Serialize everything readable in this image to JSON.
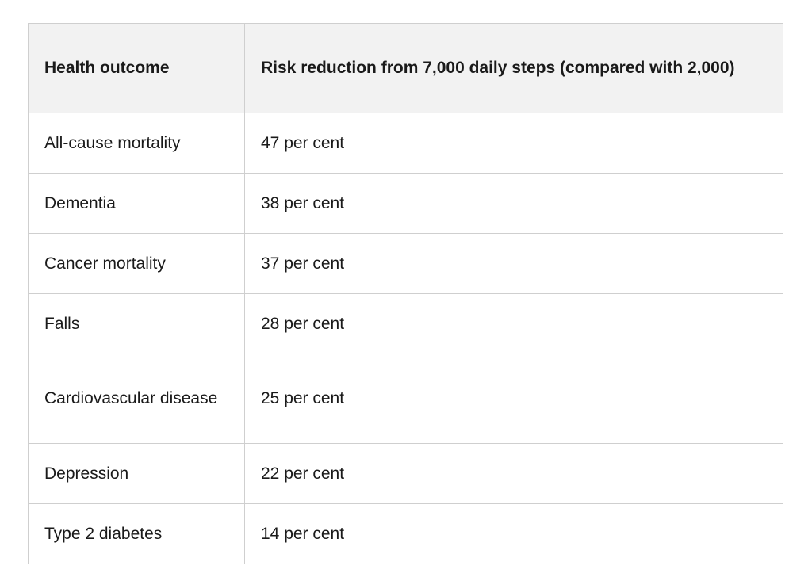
{
  "table": {
    "headers": [
      "Health outcome",
      "Risk reduction from 7,000 daily steps (compared with 2,000)"
    ],
    "rows": [
      [
        "All-cause mortality",
        "47 per cent"
      ],
      [
        "Dementia",
        "38 per cent"
      ],
      [
        "Cancer mortality",
        "37 per cent"
      ],
      [
        "Falls",
        "28 per cent"
      ],
      [
        "Cardiovascular disease",
        "25 per cent"
      ],
      [
        "Depression",
        "22 per cent"
      ],
      [
        "Type 2 diabetes",
        "14 per cent"
      ]
    ]
  }
}
